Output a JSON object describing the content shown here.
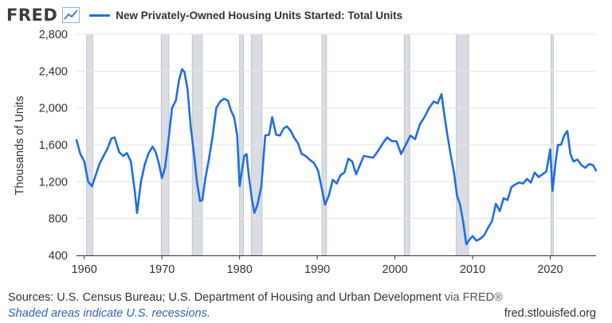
{
  "header": {
    "logo_text": "FRED",
    "logo_icon": "trend-line-icon"
  },
  "chart_data": {
    "type": "line",
    "title": "",
    "ylabel": "Thousands of Units",
    "xlabel": "",
    "xlim": [
      1959.0,
      2025.9
    ],
    "ylim": [
      400,
      2800
    ],
    "yticks": [
      400,
      800,
      1200,
      1600,
      2000,
      2400,
      2800
    ],
    "ytick_labels": [
      "400",
      "800",
      "1,200",
      "1,600",
      "2,000",
      "2,400",
      "2,800"
    ],
    "xticks": [
      1960,
      1970,
      1980,
      1990,
      2000,
      2010,
      2020
    ],
    "xtick_labels": [
      "1960",
      "1970",
      "1980",
      "1990",
      "2000",
      "2010",
      "2020"
    ],
    "grid": "horizontal",
    "legend_position": "top",
    "line_color": "#1f6fe0",
    "recession_color": "#d9dde3",
    "recessions": [
      [
        1960.3,
        1961.1
      ],
      [
        1969.9,
        1970.9
      ],
      [
        1973.9,
        1975.2
      ],
      [
        1980.0,
        1980.5
      ],
      [
        1981.5,
        1982.9
      ],
      [
        1990.6,
        1991.2
      ],
      [
        2001.2,
        2001.9
      ],
      [
        2007.9,
        2009.5
      ],
      [
        2020.1,
        2020.4
      ]
    ],
    "series": [
      {
        "name": "New Privately-Owned Housing Units Started: Total Units",
        "x": [
          1959.0,
          1959.5,
          1960.0,
          1960.5,
          1961.0,
          1961.5,
          1962.0,
          1962.5,
          1963.0,
          1963.5,
          1963.9,
          1964.5,
          1965.0,
          1965.5,
          1966.0,
          1966.5,
          1966.8,
          1967.3,
          1967.8,
          1968.3,
          1968.8,
          1969.2,
          1969.6,
          1970.0,
          1970.4,
          1970.8,
          1971.3,
          1971.8,
          1972.2,
          1972.6,
          1972.9,
          1973.3,
          1973.7,
          1974.1,
          1974.5,
          1974.9,
          1975.2,
          1975.6,
          1976.0,
          1976.5,
          1977.0,
          1977.5,
          1978.0,
          1978.5,
          1978.9,
          1979.3,
          1979.7,
          1980.0,
          1980.3,
          1980.6,
          1980.9,
          1981.2,
          1981.6,
          1981.9,
          1982.3,
          1982.8,
          1983.3,
          1983.8,
          1984.2,
          1984.7,
          1985.2,
          1985.7,
          1986.1,
          1986.6,
          1987.0,
          1987.5,
          1988.0,
          1988.5,
          1989.0,
          1989.6,
          1990.1,
          1990.6,
          1991.0,
          1991.5,
          1992.0,
          1992.5,
          1993.0,
          1993.5,
          1994.0,
          1994.5,
          1995.0,
          1995.5,
          1996.0,
          1996.6,
          1997.2,
          1997.8,
          1998.4,
          1999.0,
          1999.6,
          2000.2,
          2000.8,
          2001.4,
          2002.0,
          2002.6,
          2003.2,
          2003.8,
          2004.4,
          2005.0,
          2005.5,
          2006.0,
          2006.4,
          2006.8,
          2007.2,
          2007.6,
          2008.0,
          2008.4,
          2008.8,
          2009.2,
          2009.6,
          2010.0,
          2010.5,
          2011.0,
          2011.5,
          2012.0,
          2012.5,
          2013.0,
          2013.5,
          2014.0,
          2014.5,
          2015.0,
          2015.5,
          2016.0,
          2016.5,
          2017.0,
          2017.5,
          2018.0,
          2018.5,
          2019.0,
          2019.5,
          2020.0,
          2020.3,
          2020.7,
          2021.0,
          2021.4,
          2021.8,
          2022.2,
          2022.6,
          2023.0,
          2023.5,
          2024.0,
          2024.5,
          2025.0,
          2025.5,
          2025.9
        ],
        "values": [
          1650,
          1500,
          1420,
          1200,
          1150,
          1280,
          1400,
          1480,
          1560,
          1670,
          1680,
          1520,
          1480,
          1510,
          1420,
          1100,
          860,
          1200,
          1390,
          1510,
          1580,
          1520,
          1400,
          1240,
          1350,
          1620,
          2000,
          2080,
          2300,
          2420,
          2390,
          2200,
          1800,
          1520,
          1200,
          990,
          1000,
          1240,
          1420,
          1680,
          2000,
          2070,
          2100,
          2080,
          1970,
          1900,
          1700,
          1150,
          1320,
          1480,
          1500,
          1250,
          1000,
          860,
          950,
          1150,
          1700,
          1710,
          1900,
          1710,
          1700,
          1780,
          1800,
          1750,
          1680,
          1620,
          1500,
          1480,
          1440,
          1400,
          1320,
          1120,
          950,
          1050,
          1220,
          1180,
          1270,
          1300,
          1450,
          1420,
          1280,
          1380,
          1480,
          1470,
          1460,
          1530,
          1610,
          1680,
          1640,
          1640,
          1500,
          1600,
          1700,
          1660,
          1820,
          1900,
          2000,
          2070,
          2050,
          2150,
          1900,
          1680,
          1480,
          1300,
          1050,
          950,
          760,
          520,
          570,
          610,
          560,
          580,
          620,
          700,
          770,
          960,
          880,
          1020,
          1000,
          1140,
          1170,
          1190,
          1180,
          1230,
          1190,
          1300,
          1250,
          1280,
          1310,
          1550,
          1100,
          1420,
          1600,
          1600,
          1700,
          1750,
          1500,
          1420,
          1440,
          1380,
          1350,
          1390,
          1380,
          1320
        ]
      }
    ]
  },
  "footer": {
    "sources": "Sources: U.S. Census Bureau; U.S. Department of Housing and Urban Development",
    "via": " via FRED®",
    "recession_note": "Shaded areas indicate U.S. recessions.",
    "url": "fred.stlouisfed.org"
  }
}
